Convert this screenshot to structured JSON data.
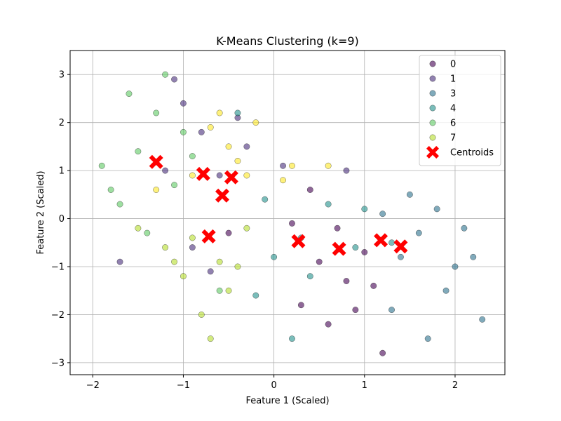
{
  "chart_data": {
    "type": "scatter",
    "title": "K-Means Clustering (k=9)",
    "xlabel": "Feature 1 (Scaled)",
    "ylabel": "Feature 2 (Scaled)",
    "xlim": [
      -2.25,
      2.55
    ],
    "ylim": [
      -3.25,
      3.5
    ],
    "x_ticks": [
      -2,
      -1,
      0,
      1,
      2
    ],
    "y_ticks": [
      -3,
      -2,
      -1,
      0,
      1,
      2,
      3
    ],
    "grid": true,
    "legend_position": "top-right",
    "series": [
      {
        "name": "0",
        "color": "#440154",
        "points": [
          [
            0.2,
            -0.1
          ],
          [
            0.5,
            -0.9
          ],
          [
            0.8,
            -1.3
          ],
          [
            1.0,
            -0.7
          ],
          [
            0.3,
            -1.8
          ],
          [
            0.6,
            -2.2
          ],
          [
            1.2,
            -2.8
          ],
          [
            0.9,
            -1.9
          ],
          [
            0.4,
            0.6
          ],
          [
            -0.5,
            -0.3
          ],
          [
            0.7,
            -0.2
          ],
          [
            1.1,
            -1.4
          ]
        ]
      },
      {
        "name": "1",
        "color": "#472d7b",
        "points": [
          [
            -0.8,
            1.8
          ],
          [
            -1.0,
            2.4
          ],
          [
            -0.3,
            1.5
          ],
          [
            -0.6,
            0.9
          ],
          [
            -1.2,
            1.0
          ],
          [
            -0.9,
            -0.6
          ],
          [
            -1.7,
            -0.9
          ],
          [
            -0.4,
            2.1
          ],
          [
            0.1,
            1.1
          ],
          [
            -1.1,
            2.9
          ],
          [
            -0.7,
            -1.1
          ],
          [
            0.8,
            1.0
          ]
        ]
      },
      {
        "name": "3",
        "color": "#2c728e",
        "points": [
          [
            1.4,
            -0.8
          ],
          [
            1.6,
            -0.3
          ],
          [
            1.9,
            -1.5
          ],
          [
            2.1,
            -0.2
          ],
          [
            1.8,
            0.2
          ],
          [
            1.3,
            -1.9
          ],
          [
            2.3,
            -2.1
          ],
          [
            1.5,
            0.5
          ],
          [
            1.7,
            -2.5
          ],
          [
            2.0,
            -1.0
          ],
          [
            1.2,
            0.1
          ],
          [
            2.2,
            -0.8
          ]
        ]
      },
      {
        "name": "4",
        "color": "#21918c",
        "points": [
          [
            0.3,
            -0.4
          ],
          [
            0.0,
            -0.8
          ],
          [
            0.6,
            0.3
          ],
          [
            -0.2,
            -1.6
          ],
          [
            0.4,
            -1.2
          ],
          [
            1.0,
            0.2
          ],
          [
            -0.4,
            2.2
          ],
          [
            0.2,
            -2.5
          ],
          [
            1.3,
            -0.5
          ],
          [
            -0.1,
            0.4
          ],
          [
            0.9,
            -0.6
          ]
        ]
      },
      {
        "name": "6",
        "color": "#5ec962",
        "points": [
          [
            -1.5,
            1.4
          ],
          [
            -1.8,
            0.6
          ],
          [
            -1.3,
            2.2
          ],
          [
            -1.6,
            2.6
          ],
          [
            -1.0,
            1.8
          ],
          [
            -1.9,
            1.1
          ],
          [
            -1.4,
            -0.3
          ],
          [
            -0.9,
            1.3
          ],
          [
            -1.2,
            3.0
          ],
          [
            -0.6,
            -1.5
          ],
          [
            -1.7,
            0.3
          ],
          [
            -1.1,
            0.7
          ]
        ]
      },
      {
        "name": "7",
        "color": "#b5de2b",
        "points": [
          [
            -0.9,
            -0.4
          ],
          [
            -0.6,
            -0.9
          ],
          [
            -1.2,
            -0.6
          ],
          [
            -0.7,
            -2.5
          ],
          [
            -0.5,
            -1.5
          ],
          [
            -1.0,
            -1.2
          ],
          [
            -0.3,
            -0.2
          ],
          [
            -0.8,
            -2.0
          ],
          [
            -1.5,
            -0.2
          ],
          [
            -0.4,
            -1.0
          ],
          [
            -1.1,
            -0.9
          ]
        ]
      },
      {
        "name": "",
        "color": "#fde725",
        "points": [
          [
            -0.5,
            1.5
          ],
          [
            -0.7,
            1.9
          ],
          [
            -0.3,
            0.9
          ],
          [
            -0.2,
            2.0
          ],
          [
            0.1,
            0.8
          ],
          [
            -0.9,
            0.9
          ],
          [
            -0.4,
            1.2
          ],
          [
            -0.6,
            2.2
          ],
          [
            0.2,
            1.1
          ],
          [
            -1.3,
            0.6
          ],
          [
            0.6,
            1.1
          ]
        ]
      }
    ],
    "centroids": {
      "name": "Centroids",
      "color": "#ff0000",
      "points": [
        [
          -1.3,
          1.18
        ],
        [
          -0.78,
          0.93
        ],
        [
          -0.47,
          0.86
        ],
        [
          -0.57,
          0.48
        ],
        [
          -0.72,
          -0.37
        ],
        [
          0.27,
          -0.47
        ],
        [
          0.72,
          -0.63
        ],
        [
          1.18,
          -0.45
        ],
        [
          1.4,
          -0.58
        ]
      ]
    }
  }
}
